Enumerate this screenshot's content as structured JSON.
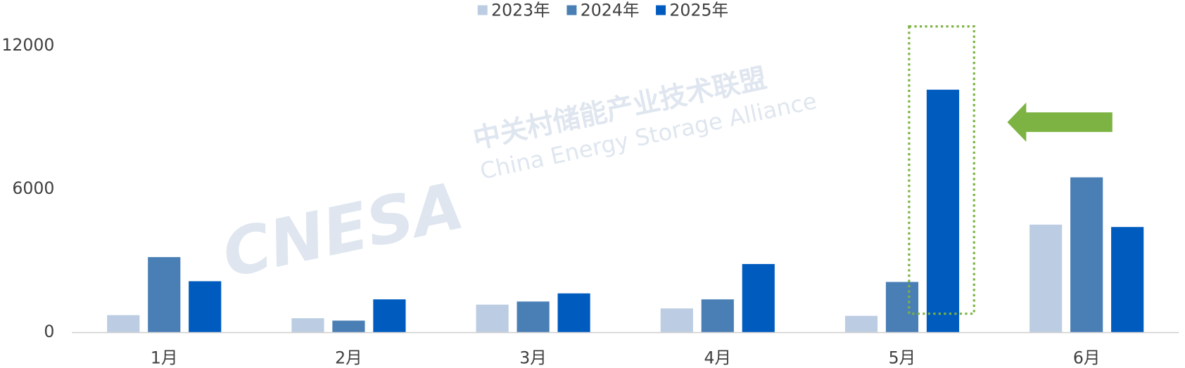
{
  "chart_data": {
    "type": "bar",
    "categories": [
      "1月",
      "2月",
      "3月",
      "4月",
      "5月",
      "6月"
    ],
    "series": [
      {
        "name": "2023年",
        "color": "#bccde3",
        "values": [
          730,
          600,
          1170,
          1010,
          700,
          4520
        ]
      },
      {
        "name": "2024年",
        "color": "#4a7fb5",
        "values": [
          3160,
          500,
          1300,
          1390,
          2120,
          6500
        ]
      },
      {
        "name": "2025年",
        "color": "#005bbf",
        "values": [
          2150,
          1390,
          1640,
          2870,
          10170,
          4420
        ]
      }
    ],
    "ylim": [
      0,
      12000
    ],
    "yticks": [
      0,
      6000,
      12000
    ],
    "grid": false,
    "legend": "top",
    "watermark": {
      "logo": "CNESA",
      "name_cn": "中关村储能产业技术联盟",
      "name_en": "China Energy Storage Alliance"
    }
  }
}
